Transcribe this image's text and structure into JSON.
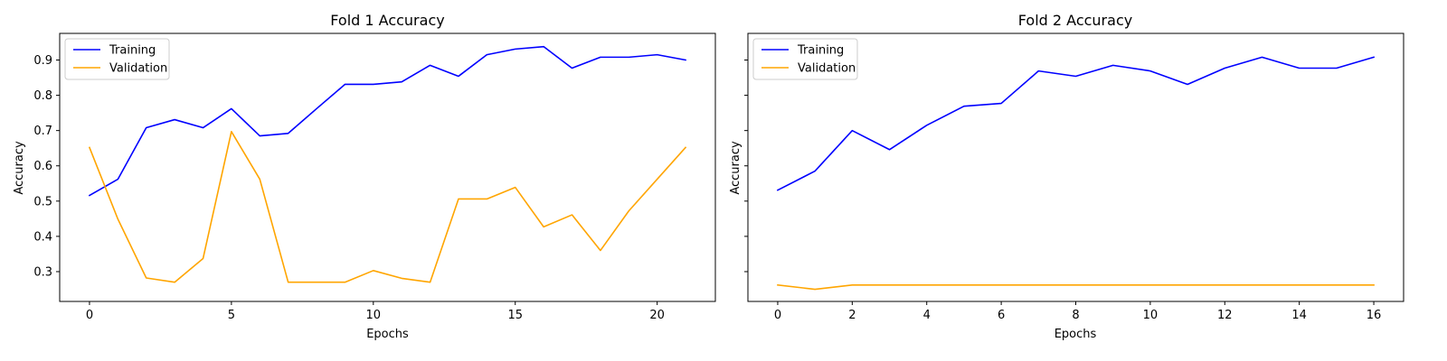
{
  "chart_data": [
    {
      "type": "line",
      "title": "Fold 1 Accuracy",
      "xlabel": "Epochs",
      "ylabel": "Accuracy",
      "xlim": [
        -1.05,
        22.05
      ],
      "ylim": [
        0.2155,
        0.9755
      ],
      "xticks": [
        0,
        5,
        10,
        15,
        20
      ],
      "yticks": [
        0.3,
        0.4,
        0.5,
        0.6,
        0.7,
        0.8,
        0.9
      ],
      "legend_position": "top-left",
      "series": [
        {
          "name": "Training",
          "color": "#0000ff",
          "x": [
            0,
            1,
            2,
            3,
            4,
            5,
            6,
            7,
            8,
            9,
            10,
            11,
            12,
            13,
            14,
            15,
            16,
            17,
            18,
            19,
            20,
            21
          ],
          "y": [
            0.516,
            0.562,
            0.708,
            0.731,
            0.708,
            0.762,
            0.685,
            0.692,
            0.762,
            0.831,
            0.831,
            0.838,
            0.885,
            0.854,
            0.915,
            0.931,
            0.938,
            0.877,
            0.908,
            0.908,
            0.915,
            0.9
          ]
        },
        {
          "name": "Validation",
          "color": "#ffa500",
          "x": [
            0,
            1,
            2,
            3,
            4,
            5,
            6,
            7,
            8,
            9,
            10,
            11,
            12,
            13,
            14,
            15,
            16,
            17,
            18,
            19,
            20,
            21
          ],
          "y": [
            0.652,
            0.449,
            0.282,
            0.27,
            0.337,
            0.697,
            0.562,
            0.27,
            0.27,
            0.27,
            0.303,
            0.281,
            0.27,
            0.506,
            0.506,
            0.539,
            0.427,
            0.461,
            0.36,
            0.472,
            0.562,
            0.652
          ]
        }
      ]
    },
    {
      "type": "line",
      "title": "Fold 2 Accuracy",
      "xlabel": "Epochs",
      "ylabel": "Accuracy",
      "xlim": [
        -0.8,
        16.8
      ],
      "ylim": [
        0.2155,
        0.9755
      ],
      "xticks": [
        0,
        2,
        4,
        6,
        8,
        10,
        12,
        14,
        16
      ],
      "yticks": [
        0.3,
        0.4,
        0.5,
        0.6,
        0.7,
        0.8,
        0.9
      ],
      "legend_position": "top-left",
      "series": [
        {
          "name": "Training",
          "color": "#0000ff",
          "x": [
            0,
            1,
            2,
            3,
            4,
            5,
            6,
            7,
            8,
            9,
            10,
            11,
            12,
            13,
            14,
            15,
            16
          ],
          "y": [
            0.531,
            0.585,
            0.7,
            0.646,
            0.715,
            0.769,
            0.777,
            0.869,
            0.854,
            0.885,
            0.869,
            0.831,
            0.877,
            0.908,
            0.877,
            0.877,
            0.908
          ]
        },
        {
          "name": "Validation",
          "color": "#ffa500",
          "x": [
            0,
            1,
            2,
            3,
            4,
            5,
            6,
            7,
            8,
            9,
            10,
            11,
            12,
            13,
            14,
            15,
            16
          ],
          "y": [
            0.262,
            0.25,
            0.262,
            0.262,
            0.262,
            0.262,
            0.262,
            0.262,
            0.262,
            0.262,
            0.262,
            0.262,
            0.262,
            0.262,
            0.262,
            0.262,
            0.262
          ]
        }
      ]
    }
  ]
}
